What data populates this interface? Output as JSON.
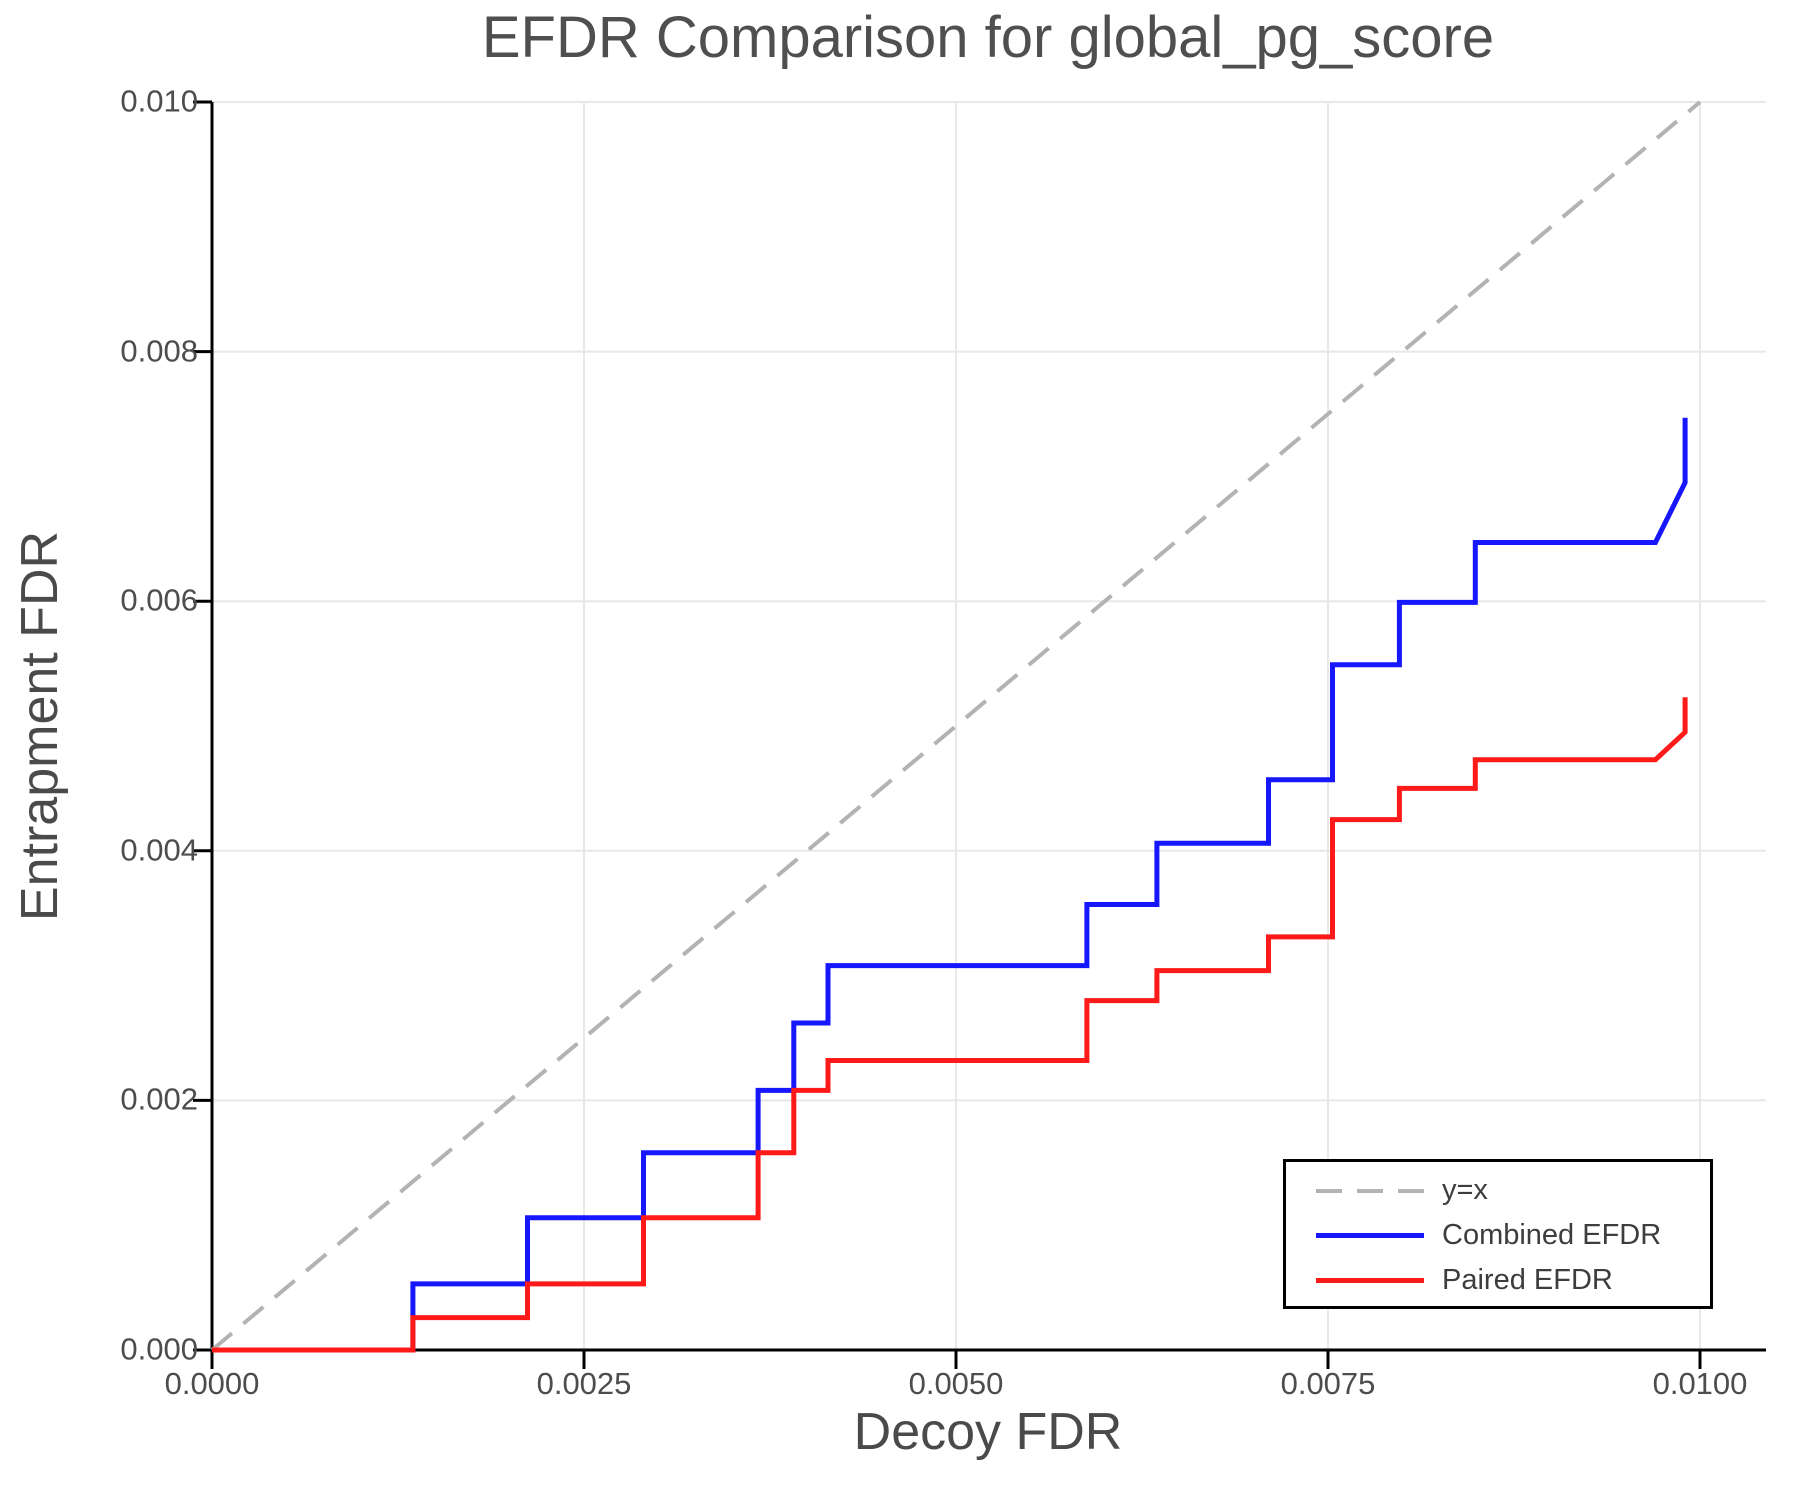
{
  "title": "EFDR Comparison for global_pg_score",
  "axes": {
    "xlabel": "Decoy FDR",
    "ylabel": "Entrapment FDR"
  },
  "legend": {
    "items": [
      {
        "label": "y=x",
        "color": "#b3b3b3",
        "style": "dashed"
      },
      {
        "label": "Combined EFDR",
        "color": "#1616ff",
        "style": "solid"
      },
      {
        "label": "Paired EFDR",
        "color": "#ff1a1a",
        "style": "solid"
      }
    ]
  },
  "colors": {
    "grid": "#e8e8e8",
    "spine": "#000000",
    "text": "#4d4d4d",
    "identity_line": "#b3b3b3",
    "combined": "#1616ff",
    "paired": "#ff1a1a"
  },
  "chart_data": {
    "type": "line",
    "title": "EFDR Comparison for global_pg_score",
    "xlabel": "Decoy FDR",
    "ylabel": "Entrapment FDR",
    "xlim": [
      0,
      0.01044
    ],
    "ylim": [
      0,
      0.01
    ],
    "grid": true,
    "legend_position": "lower right",
    "x_ticks": {
      "values": [
        0,
        0.0025,
        0.005,
        0.0075,
        0.01
      ],
      "labels": [
        "0.0000",
        "0.0025",
        "0.0050",
        "0.0075",
        "0.0100"
      ]
    },
    "y_ticks": {
      "values": [
        0,
        0.002,
        0.004,
        0.006,
        0.008,
        0.01
      ],
      "labels": [
        "0.000",
        "0.002",
        "0.004",
        "0.006",
        "0.008",
        "0.010"
      ]
    },
    "series": [
      {
        "name": "y=x",
        "color": "#b3b3b3",
        "style": "dashed",
        "width": 4,
        "points": [
          [
            0,
            0
          ],
          [
            0.01,
            0.01
          ]
        ]
      },
      {
        "name": "Combined EFDR",
        "color": "#1616ff",
        "style": "solid",
        "width": 5,
        "points": [
          [
            0,
            0
          ],
          [
            0.00135,
            0
          ],
          [
            0.00135,
            0.00053
          ],
          [
            0.00212,
            0.00053
          ],
          [
            0.00212,
            0.00106
          ],
          [
            0.0029,
            0.00106
          ],
          [
            0.0029,
            0.00158
          ],
          [
            0.00367,
            0.00158
          ],
          [
            0.00367,
            0.00208
          ],
          [
            0.00391,
            0.00208
          ],
          [
            0.00391,
            0.00262
          ],
          [
            0.00414,
            0.00262
          ],
          [
            0.00414,
            0.00308
          ],
          [
            0.00588,
            0.00308
          ],
          [
            0.00588,
            0.00357
          ],
          [
            0.00635,
            0.00357
          ],
          [
            0.00635,
            0.00406
          ],
          [
            0.0071,
            0.00406
          ],
          [
            0.0071,
            0.00457
          ],
          [
            0.00753,
            0.00457
          ],
          [
            0.00753,
            0.00549
          ],
          [
            0.00798,
            0.00549
          ],
          [
            0.00798,
            0.00599
          ],
          [
            0.00849,
            0.00599
          ],
          [
            0.00849,
            0.00647
          ],
          [
            0.0097,
            0.00647
          ],
          [
            0.0099,
            0.00695
          ],
          [
            0.0099,
            0.00747
          ]
        ]
      },
      {
        "name": "Paired EFDR",
        "color": "#ff1a1a",
        "style": "solid",
        "width": 5,
        "points": [
          [
            0,
            0
          ],
          [
            0.00135,
            0
          ],
          [
            0.00135,
            0.00026
          ],
          [
            0.00212,
            0.00026
          ],
          [
            0.00212,
            0.00053
          ],
          [
            0.0029,
            0.00053
          ],
          [
            0.0029,
            0.00106
          ],
          [
            0.00367,
            0.00106
          ],
          [
            0.00367,
            0.00158
          ],
          [
            0.00391,
            0.00158
          ],
          [
            0.00391,
            0.00208
          ],
          [
            0.00414,
            0.00208
          ],
          [
            0.00414,
            0.00232
          ],
          [
            0.00588,
            0.00232
          ],
          [
            0.00588,
            0.0028
          ],
          [
            0.00635,
            0.0028
          ],
          [
            0.00635,
            0.00304
          ],
          [
            0.0071,
            0.00304
          ],
          [
            0.0071,
            0.00331
          ],
          [
            0.00753,
            0.00331
          ],
          [
            0.00753,
            0.00425
          ],
          [
            0.00798,
            0.00425
          ],
          [
            0.00798,
            0.0045
          ],
          [
            0.00849,
            0.0045
          ],
          [
            0.00849,
            0.00473
          ],
          [
            0.0097,
            0.00473
          ],
          [
            0.0099,
            0.00495
          ],
          [
            0.0099,
            0.00523
          ]
        ]
      }
    ]
  }
}
